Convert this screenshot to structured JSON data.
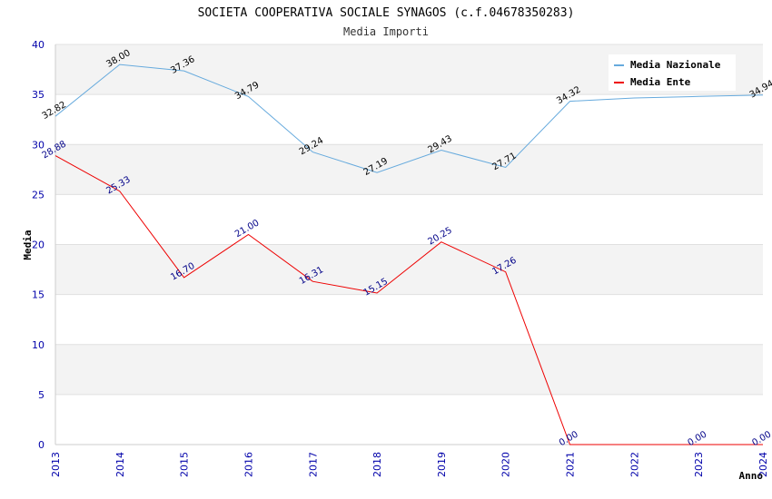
{
  "chart_data": {
    "type": "line",
    "title": "SOCIETA COOPERATIVA SOCIALE SYNAGOS (c.f.04678350283)",
    "subtitle": "Media Importi",
    "xlabel": "Anno",
    "ylabel": "Media",
    "ylim": [
      0,
      40
    ],
    "y_ticks": [
      "0",
      "5",
      "10",
      "15",
      "20",
      "25",
      "30",
      "35",
      "40"
    ],
    "categories": [
      "2013",
      "2014",
      "2015",
      "2016",
      "2017",
      "2018",
      "2019",
      "2020",
      "2021",
      "2022",
      "2023",
      "2024"
    ],
    "grid": true,
    "legend_position": "top-right",
    "series": [
      {
        "name": "Media Nazionale",
        "color": "#66aadd",
        "label_color": "#000000",
        "values": [
          32.82,
          38.0,
          37.36,
          34.79,
          29.24,
          27.19,
          29.43,
          27.71,
          34.32,
          34.65,
          34.8,
          34.94
        ],
        "labels": [
          "32.82",
          "38.00",
          "37.36",
          "34.79",
          "29.24",
          "27.19",
          "29.43",
          "27.71",
          "34.32",
          null,
          null,
          "34.94"
        ]
      },
      {
        "name": "Media Ente",
        "color": "#ee0000",
        "label_color": "#000088",
        "values": [
          28.88,
          25.33,
          16.7,
          21.0,
          16.31,
          15.15,
          20.25,
          17.26,
          0.0,
          null,
          0.0,
          0.0
        ],
        "labels": [
          "28.88",
          "25.33",
          "16.70",
          "21.00",
          "16.31",
          "15.15",
          "20.25",
          "17.26",
          "0.00",
          null,
          "0.00",
          "0.00"
        ]
      }
    ]
  }
}
